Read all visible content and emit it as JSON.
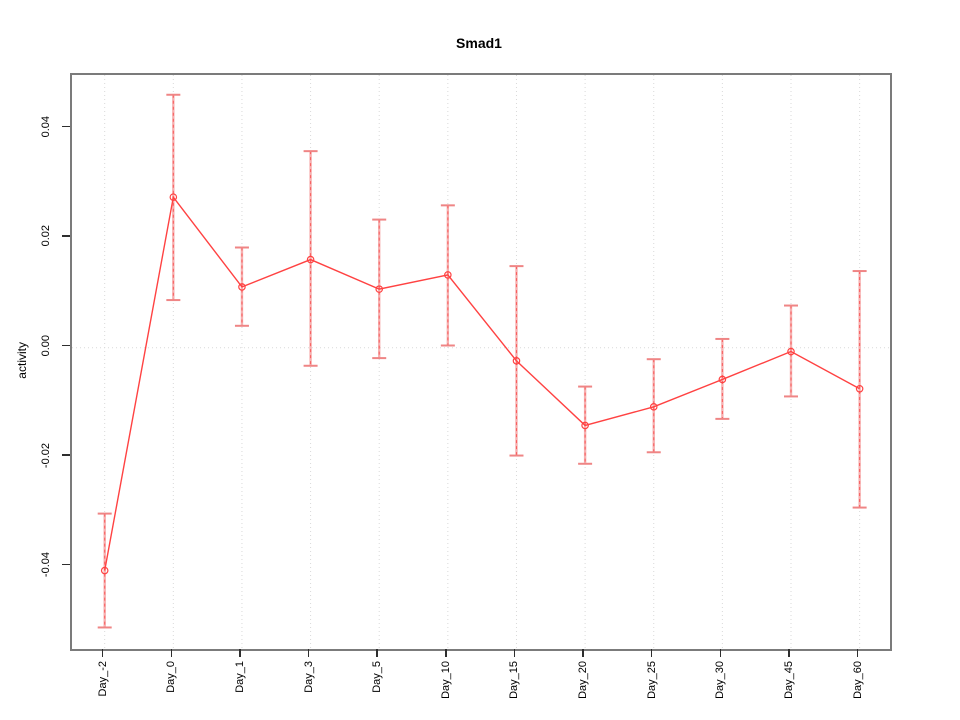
{
  "chart_data": {
    "type": "line",
    "title": "Smad1",
    "xlabel": "",
    "ylabel": "activity",
    "legend": "none",
    "grid": {
      "vertical": "dotted at each category",
      "horizontal": "dotted at 0 only"
    },
    "marker": "open-circle",
    "categories": [
      "Day_-2",
      "Day_0",
      "Day_1",
      "Day_3",
      "Day_5",
      "Day_10",
      "Day_15",
      "Day_20",
      "Day_25",
      "Day_30",
      "Day_45",
      "Day_60"
    ],
    "series": [
      {
        "name": "activity",
        "values": [
          -0.0407,
          0.0275,
          0.0111,
          0.0161,
          0.0107,
          0.0133,
          -0.0024,
          -0.0142,
          -0.0108,
          -0.0058,
          -0.0007,
          -0.0075
        ],
        "error_upper": [
          -0.0303,
          0.0462,
          0.0183,
          0.0359,
          0.0234,
          0.026,
          0.0149,
          -0.0071,
          -0.0021,
          0.0016,
          0.0077,
          0.014
        ],
        "error_lower": [
          -0.0511,
          0.0087,
          0.004,
          -0.0033,
          -0.0019,
          0.0004,
          -0.0197,
          -0.0212,
          -0.0191,
          -0.013,
          -0.0089,
          -0.0292
        ]
      }
    ],
    "y_ticks": [
      {
        "value": 0.04,
        "label": "0.04"
      },
      {
        "value": 0.02,
        "label": "0.02"
      },
      {
        "value": 0.0,
        "label": "0.00"
      },
      {
        "value": -0.02,
        "label": "-0.02"
      },
      {
        "value": -0.04,
        "label": "-0.04"
      }
    ],
    "ylim": [
      -0.055,
      0.0498
    ]
  },
  "colors": {
    "line": "#ff4242",
    "marker": "#ff4242",
    "errorbar_shaft": "#f6b0b0",
    "errorbar_dash": "#f85c5c",
    "errorbar_cap": "#ef8585",
    "grid": "#d9d9d9",
    "axis_box": "#7b7b7b",
    "tick": "#2e2e2e",
    "text": "#000000",
    "background": "#ffffff"
  }
}
